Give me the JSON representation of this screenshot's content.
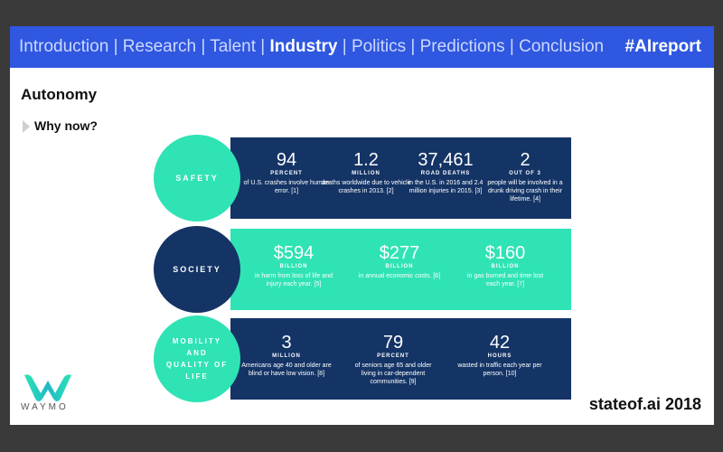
{
  "nav": {
    "items": [
      "Introduction",
      "Research",
      "Talent",
      "Industry",
      "Politics",
      "Predictions",
      "Conclusion"
    ],
    "active": "Industry",
    "hashtag": "#AIreport"
  },
  "title": "Autonomy",
  "subtitle": "Why now?",
  "bands": [
    {
      "label": "SAFETY",
      "stats": [
        {
          "num": "94",
          "unit": "PERCENT",
          "desc": "of U.S. crashes involve human error. [1]"
        },
        {
          "num": "1.2",
          "unit": "MILLION",
          "desc": "deaths worldwide due to vehicle crashes in 2013. [2]"
        },
        {
          "num": "37,461",
          "unit": "ROAD DEATHS",
          "desc": "in the U.S. in 2016 and 2.4 million injuries in 2015. [3]"
        },
        {
          "num": "2",
          "unit": "OUT OF 3",
          "desc": "people will be involved in a drunk driving crash in their lifetime. [4]"
        }
      ]
    },
    {
      "label": "SOCIETY",
      "stats": [
        {
          "num": "$594",
          "unit": "BILLION",
          "desc": "in harm from loss of life and injury each year. [5]"
        },
        {
          "num": "$277",
          "unit": "BILLION",
          "desc": "in annual economic costs. [6]"
        },
        {
          "num": "$160",
          "unit": "BILLION",
          "desc": "in gas burned and time lost each year. [7]"
        }
      ]
    },
    {
      "label": "MOBILITY AND QUALITY OF LIFE",
      "stats": [
        {
          "num": "3",
          "unit": "MILLION",
          "desc": "Americans age 40 and older are blind or have low vision. [8]"
        },
        {
          "num": "79",
          "unit": "PERCENT",
          "desc": "of seniors age 65 and older living in car-dependent communities. [9]"
        },
        {
          "num": "42",
          "unit": "HOURS",
          "desc": "wasted in traffic each year per person. [10]"
        }
      ]
    }
  ],
  "logo": {
    "text": "WAYMO",
    "icon": "waymo-logo"
  },
  "footer": "stateof.ai 2018",
  "colors": {
    "nav": "#2f57e0",
    "dark": "#143466",
    "teal": "#2fe3b4"
  }
}
